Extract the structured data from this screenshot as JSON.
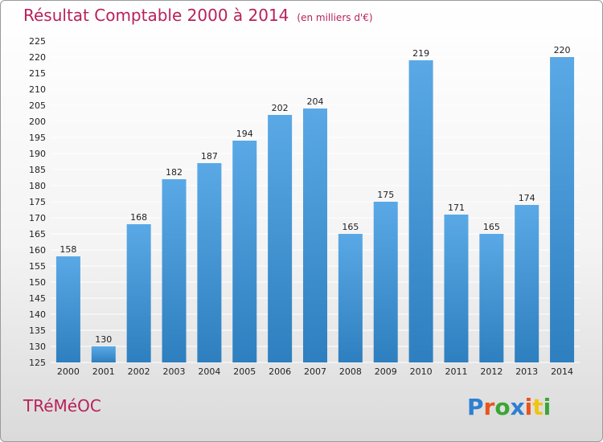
{
  "header": {
    "title": "Résultat Comptable 2000 à 2014",
    "subtitle": "(en milliers d'€)"
  },
  "footer": {
    "commune": "TRéMéOC",
    "logo_letters": [
      "P",
      "r",
      "o",
      "x",
      "i",
      "t",
      "i"
    ],
    "logo_colors": [
      "#2e7fd1",
      "#e8541b",
      "#3aa535",
      "#2e7fd1",
      "#e8541b",
      "#f1c40f",
      "#3aa535"
    ]
  },
  "colors": {
    "bar_light": "#5aa9e6",
    "bar_dark": "#2e7fbf",
    "grid": "#ffffff",
    "title": "#b8215a"
  },
  "chart_data": {
    "type": "bar",
    "title": "Résultat Comptable 2000 à 2014",
    "subtitle": "(en milliers d'€)",
    "categories": [
      "2000",
      "2001",
      "2002",
      "2003",
      "2004",
      "2005",
      "2006",
      "2007",
      "2008",
      "2009",
      "2010",
      "2011",
      "2012",
      "2013",
      "2014"
    ],
    "values": [
      158,
      130,
      168,
      182,
      187,
      194,
      202,
      204,
      165,
      175,
      219,
      171,
      165,
      174,
      220
    ],
    "ylim": [
      125,
      225
    ],
    "yticks": [
      125,
      130,
      135,
      140,
      145,
      150,
      155,
      160,
      165,
      170,
      175,
      180,
      185,
      190,
      195,
      200,
      205,
      210,
      215,
      220,
      225
    ],
    "grid": true,
    "data_labels": true
  }
}
